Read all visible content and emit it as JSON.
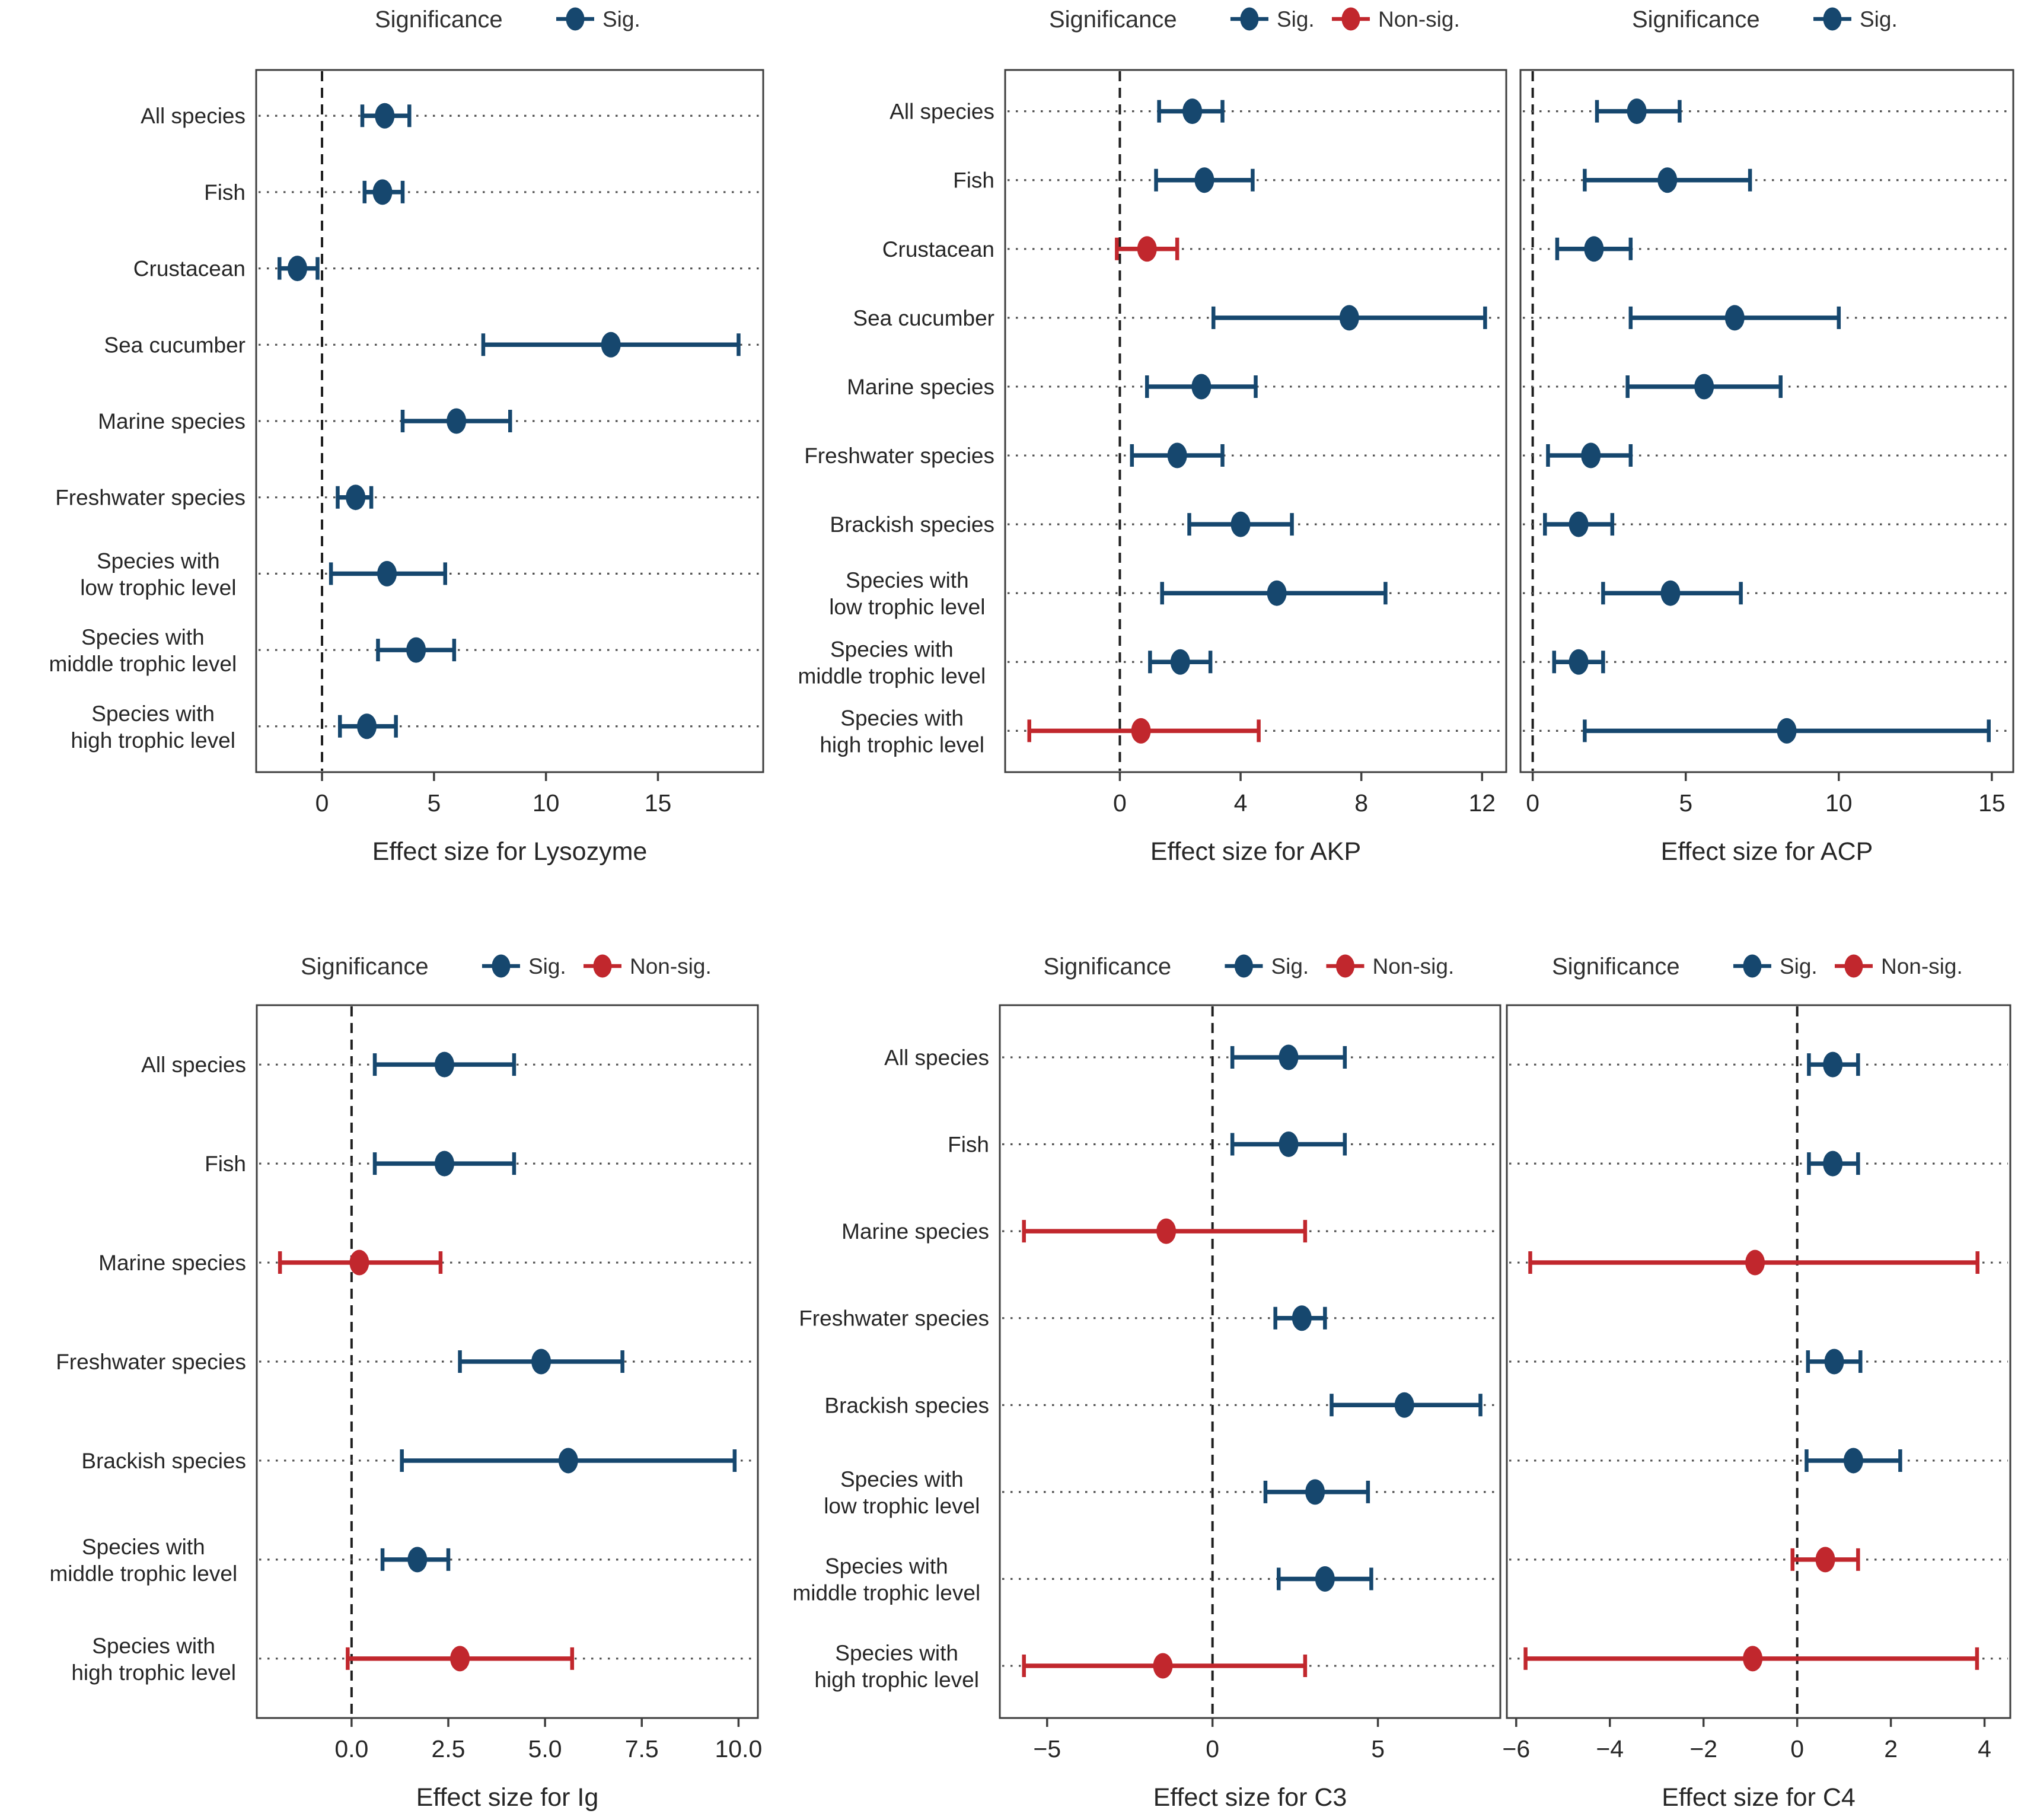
{
  "figure": {
    "legend_title": "Significance",
    "sig_label": "Sig.",
    "nonsig_label": "Non-sig."
  },
  "colors": {
    "sig": "#16476e",
    "nonsig": "#c1272d",
    "text": "#303030",
    "label_text": "#262626",
    "dotted_line": "#4f4f4f",
    "dashed_line": "#1f1f1f",
    "panel_border": "#3f3f3f",
    "background": "#ffffff"
  },
  "chart_data": [
    {
      "id": "lysozyme",
      "type": "scatter",
      "xlabel": "Effect size for Lysozyme",
      "legend": [
        "sig"
      ],
      "xlim": [
        -2.94,
        19.7
      ],
      "xticks": [
        0,
        5,
        10,
        15
      ],
      "xtick_labels": [
        "0",
        "5",
        "10",
        "15"
      ],
      "has_row_labels": true,
      "rows": [
        {
          "label": "All species",
          "est": 2.8,
          "lo": 1.8,
          "hi": 3.9,
          "sig": true
        },
        {
          "label": "Fish",
          "est": 2.7,
          "lo": 1.9,
          "hi": 3.6,
          "sig": true
        },
        {
          "label": "Crustacean",
          "est": -1.1,
          "lo": -1.9,
          "hi": -0.2,
          "sig": true
        },
        {
          "label": "Sea cucumber",
          "est": 12.9,
          "lo": 7.2,
          "hi": 18.6,
          "sig": true
        },
        {
          "label": "Marine species",
          "est": 6.0,
          "lo": 3.6,
          "hi": 8.4,
          "sig": true
        },
        {
          "label": "Freshwater species",
          "est": 1.5,
          "lo": 0.7,
          "hi": 2.2,
          "sig": true
        },
        {
          "label": "Species with\nlow trophic level",
          "est": 2.9,
          "lo": 0.4,
          "hi": 5.5,
          "sig": true
        },
        {
          "label": "Species with\nmiddle trophic level",
          "est": 4.2,
          "lo": 2.5,
          "hi": 5.9,
          "sig": true
        },
        {
          "label": "Species with\nhigh trophic level",
          "est": 2.0,
          "lo": 0.8,
          "hi": 3.3,
          "sig": true
        }
      ]
    },
    {
      "id": "akp",
      "type": "scatter",
      "xlabel": "Effect size for AKP",
      "legend": [
        "sig",
        "nonsig"
      ],
      "xlim": [
        -3.8,
        12.8
      ],
      "xticks": [
        0,
        4,
        8,
        12
      ],
      "xtick_labels": [
        "0",
        "4",
        "8",
        "12"
      ],
      "has_row_labels": true,
      "rows": [
        {
          "label": "All species",
          "est": 2.4,
          "lo": 1.3,
          "hi": 3.4,
          "sig": true
        },
        {
          "label": "Fish",
          "est": 2.8,
          "lo": 1.2,
          "hi": 4.4,
          "sig": true
        },
        {
          "label": "Crustacean",
          "est": 0.9,
          "lo": -0.1,
          "hi": 1.9,
          "sig": false
        },
        {
          "label": "Sea cucumber",
          "est": 7.6,
          "lo": 3.1,
          "hi": 12.1,
          "sig": true
        },
        {
          "label": "Marine species",
          "est": 2.7,
          "lo": 0.9,
          "hi": 4.5,
          "sig": true
        },
        {
          "label": "Freshwater species",
          "est": 1.9,
          "lo": 0.4,
          "hi": 3.4,
          "sig": true
        },
        {
          "label": "Brackish species",
          "est": 4.0,
          "lo": 2.3,
          "hi": 5.7,
          "sig": true
        },
        {
          "label": "Species with\nlow trophic level",
          "est": 5.2,
          "lo": 1.4,
          "hi": 8.8,
          "sig": true
        },
        {
          "label": "Species with\nmiddle trophic level",
          "est": 2.0,
          "lo": 1.0,
          "hi": 3.0,
          "sig": true
        },
        {
          "label": "Species with\nhigh trophic level",
          "est": 0.7,
          "lo": -3.0,
          "hi": 4.6,
          "sig": false
        }
      ]
    },
    {
      "id": "acp",
      "type": "scatter",
      "xlabel": "Effect size for ACP",
      "legend": [
        "sig"
      ],
      "xlim": [
        -0.4,
        15.7
      ],
      "xticks": [
        0,
        5,
        10,
        15
      ],
      "xtick_labels": [
        "0",
        "5",
        "10",
        "15"
      ],
      "has_row_labels": false,
      "rows": [
        {
          "label": "All species",
          "est": 3.4,
          "lo": 2.1,
          "hi": 4.8,
          "sig": true
        },
        {
          "label": "Fish",
          "est": 4.4,
          "lo": 1.7,
          "hi": 7.1,
          "sig": true
        },
        {
          "label": "Crustacean",
          "est": 2.0,
          "lo": 0.8,
          "hi": 3.2,
          "sig": true
        },
        {
          "label": "Sea cucumber",
          "est": 6.6,
          "lo": 3.2,
          "hi": 10.0,
          "sig": true
        },
        {
          "label": "Marine species",
          "est": 5.6,
          "lo": 3.1,
          "hi": 8.1,
          "sig": true
        },
        {
          "label": "Freshwater species",
          "est": 1.9,
          "lo": 0.5,
          "hi": 3.2,
          "sig": true
        },
        {
          "label": "Brackish species",
          "est": 1.5,
          "lo": 0.4,
          "hi": 2.6,
          "sig": true
        },
        {
          "label": "Species with\nlow trophic level",
          "est": 4.5,
          "lo": 2.3,
          "hi": 6.8,
          "sig": true
        },
        {
          "label": "Species with\nmiddle trophic level",
          "est": 1.5,
          "lo": 0.7,
          "hi": 2.3,
          "sig": true
        },
        {
          "label": "Species with\nhigh trophic level",
          "est": 8.3,
          "lo": 1.7,
          "hi": 14.9,
          "sig": true
        }
      ]
    },
    {
      "id": "ig",
      "type": "scatter",
      "xlabel": "Effect size for Ig",
      "legend": [
        "sig",
        "nonsig"
      ],
      "xlim": [
        -2.45,
        10.5
      ],
      "xticks": [
        0,
        2.5,
        5,
        7.5,
        10
      ],
      "xtick_labels": [
        "0.0",
        "2.5",
        "5.0",
        "7.5",
        "10.0"
      ],
      "has_row_labels": true,
      "rows": [
        {
          "label": "All species",
          "est": 2.4,
          "lo": 0.6,
          "hi": 4.2,
          "sig": true
        },
        {
          "label": "Fish",
          "est": 2.4,
          "lo": 0.6,
          "hi": 4.2,
          "sig": true
        },
        {
          "label": "Marine species",
          "est": 0.2,
          "lo": -1.85,
          "hi": 2.3,
          "sig": false
        },
        {
          "label": "Freshwater species",
          "est": 4.9,
          "lo": 2.8,
          "hi": 7.0,
          "sig": true
        },
        {
          "label": "Brackish species",
          "est": 5.6,
          "lo": 1.3,
          "hi": 9.9,
          "sig": true
        },
        {
          "label": "Species with\nmiddle trophic level",
          "est": 1.7,
          "lo": 0.8,
          "hi": 2.5,
          "sig": true
        },
        {
          "label": "Species with\nhigh trophic level",
          "est": 2.8,
          "lo": -0.1,
          "hi": 5.7,
          "sig": false
        }
      ]
    },
    {
      "id": "c3",
      "type": "scatter",
      "xlabel": "Effect size for C3",
      "legend": [
        "sig",
        "nonsig"
      ],
      "xlim": [
        -6.43,
        8.7
      ],
      "xticks": [
        -5,
        0,
        5
      ],
      "xtick_labels": [
        "−5",
        "0",
        "5"
      ],
      "has_row_labels": true,
      "rows": [
        {
          "label": "All species",
          "est": 2.3,
          "lo": 0.6,
          "hi": 4.0,
          "sig": true
        },
        {
          "label": "Fish",
          "est": 2.3,
          "lo": 0.6,
          "hi": 4.0,
          "sig": true
        },
        {
          "label": "Marine species",
          "est": -1.4,
          "lo": -5.7,
          "hi": 2.8,
          "sig": false
        },
        {
          "label": "Freshwater species",
          "est": 2.7,
          "lo": 1.9,
          "hi": 3.4,
          "sig": true
        },
        {
          "label": "Brackish species",
          "est": 5.8,
          "lo": 3.6,
          "hi": 8.1,
          "sig": true
        },
        {
          "label": "Species with\nlow trophic level",
          "est": 3.1,
          "lo": 1.6,
          "hi": 4.7,
          "sig": true
        },
        {
          "label": "Species with\nmiddle trophic level",
          "est": 3.4,
          "lo": 2.0,
          "hi": 4.8,
          "sig": true
        },
        {
          "label": "Species with\nhigh trophic level",
          "est": -1.5,
          "lo": -5.7,
          "hi": 2.8,
          "sig": false
        }
      ]
    },
    {
      "id": "c4",
      "type": "scatter",
      "xlabel": "Effect size for C4",
      "legend": [
        "sig",
        "nonsig"
      ],
      "xlim": [
        -6.2,
        4.55
      ],
      "xticks": [
        -6,
        -4,
        -2,
        0,
        2,
        4
      ],
      "xtick_labels": [
        "−6",
        "−4",
        "−2",
        "0",
        "2",
        "4"
      ],
      "has_row_labels": false,
      "rows": [
        {
          "label": "All species",
          "est": 0.76,
          "lo": 0.25,
          "hi": 1.3,
          "sig": true
        },
        {
          "label": "Fish",
          "est": 0.76,
          "lo": 0.25,
          "hi": 1.3,
          "sig": true
        },
        {
          "label": "Marine species",
          "est": -0.9,
          "lo": -5.7,
          "hi": 3.85,
          "sig": false
        },
        {
          "label": "Freshwater species",
          "est": 0.79,
          "lo": 0.23,
          "hi": 1.35,
          "sig": true
        },
        {
          "label": "Brackish species",
          "est": 1.2,
          "lo": 0.2,
          "hi": 2.2,
          "sig": true
        },
        {
          "label": "Species with\nmiddle trophic level",
          "est": 0.6,
          "lo": -0.1,
          "hi": 1.3,
          "sig": false
        },
        {
          "label": "Species with\nhigh trophic level",
          "est": -0.95,
          "lo": -5.8,
          "hi": 3.84,
          "sig": false
        }
      ]
    }
  ]
}
